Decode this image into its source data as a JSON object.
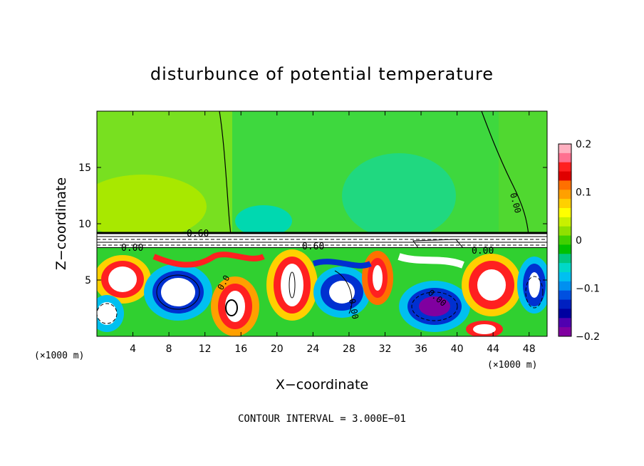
{
  "chart_data": {
    "type": "heatmap",
    "title": "disturbunce of potential temperature",
    "xlabel": "X−coordinate",
    "ylabel": "Z−coordinate",
    "x_unit": "(×1000 m)",
    "z_unit": "(×1000 m)",
    "xlim": [
      0,
      50
    ],
    "ylim": [
      0,
      20
    ],
    "x_ticks": [
      4,
      8,
      12,
      16,
      20,
      24,
      28,
      32,
      36,
      40,
      44,
      48
    ],
    "y_ticks": [
      5,
      10,
      15
    ],
    "colorbar": {
      "range": [
        -0.2,
        0.2
      ],
      "tick_labels": [
        "0.2",
        "0.1",
        "0",
        "−0.1",
        "−0.2"
      ],
      "tick_values": [
        0.2,
        0.1,
        0,
        -0.1,
        -0.2
      ],
      "colors": [
        "#ffb0c0",
        "#ff7090",
        "#ff2020",
        "#e00000",
        "#ff7000",
        "#ffa000",
        "#ffd000",
        "#ffff00",
        "#c8f000",
        "#90e000",
        "#40d000",
        "#00c000",
        "#00c880",
        "#00d8c8",
        "#00c0f0",
        "#0090f0",
        "#0050e0",
        "#0020c0",
        "#0000a0",
        "#5000b0",
        "#8000a0"
      ]
    },
    "contour_labels": [
      "0.60",
      "0.60",
      "0.00",
      "0.00",
      "0.00",
      "0.00",
      "0.00",
      "0.00",
      "0.0",
      "0.00",
      "0.0"
    ],
    "footer": "CONTOUR INTERVAL = 3.000E−01",
    "grid": false,
    "legend": "colorbar-right"
  }
}
